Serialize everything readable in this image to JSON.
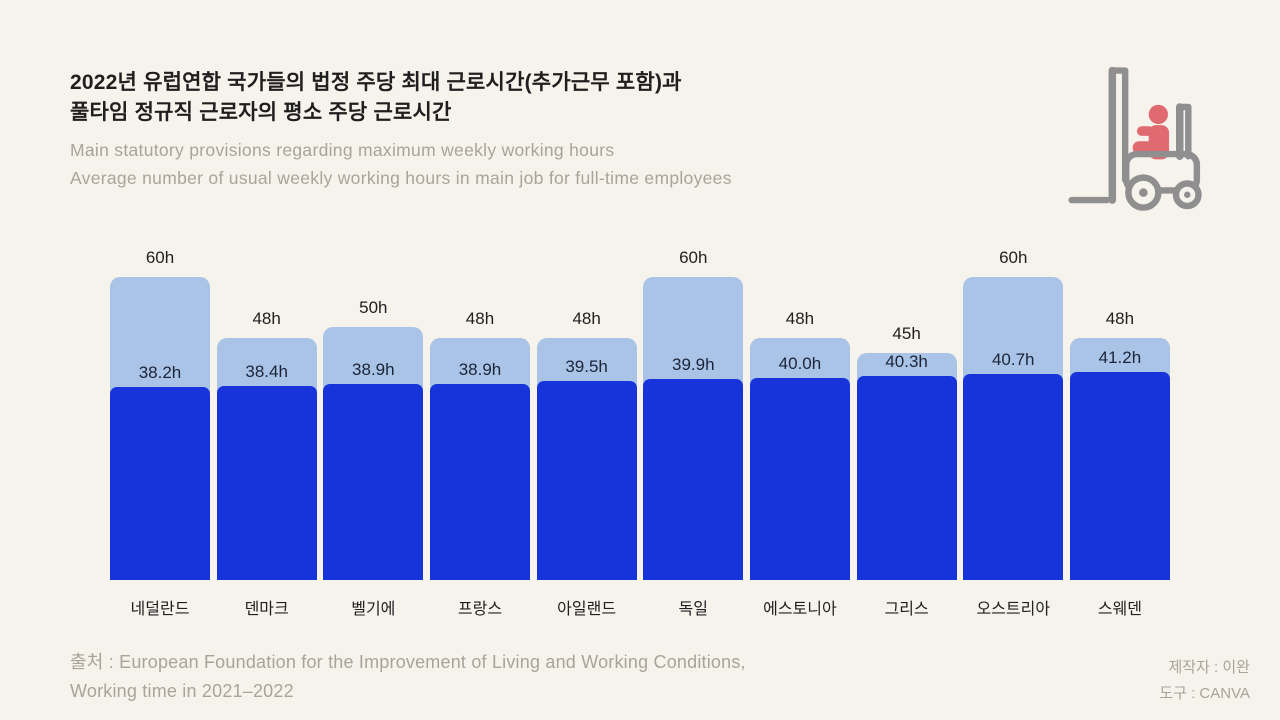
{
  "header": {
    "title_line1": "2022년 유럽연합 국가들의 법정 주당 최대 근로시간(추가근무 포함)과",
    "title_line2": "풀타임 정규직 근로자의 평소 주당 근로시간",
    "subtitle_line1": "Main statutory provisions regarding maximum weekly working hours",
    "subtitle_line2": "Average number of usual weekly working hours in main job for full-time employees"
  },
  "icon": {
    "name": "forklift-icon",
    "outline_color": "#8f8f8f",
    "driver_color": "#df6a6f"
  },
  "chart_data": {
    "type": "bar",
    "categories": [
      "네덜란드",
      "덴마크",
      "벨기에",
      "프랑스",
      "아일랜드",
      "독일",
      "에스토니아",
      "그리스",
      "오스트리아",
      "스웨덴"
    ],
    "series": [
      {
        "name": "statutory_max_weekly_hours",
        "color": "#a9c4e7",
        "values": [
          60,
          48,
          50,
          48,
          48,
          60,
          48,
          45,
          60,
          48
        ],
        "labels": [
          "60h",
          "48h",
          "50h",
          "48h",
          "48h",
          "60h",
          "48h",
          "45h",
          "60h",
          "48h"
        ]
      },
      {
        "name": "usual_weekly_hours",
        "color": "#1634d9",
        "values": [
          38.2,
          38.4,
          38.9,
          38.9,
          39.5,
          39.9,
          40.0,
          40.3,
          40.7,
          41.2
        ],
        "labels": [
          "38.2h",
          "38.4h",
          "38.9h",
          "38.9h",
          "39.5h",
          "39.9h",
          "40.0h",
          "40.3h",
          "40.7h",
          "41.2h"
        ]
      }
    ],
    "title": "2022년 유럽연합 국가들의 법정 주당 최대 근로시간(추가근무 포함)과 풀타임 정규직 근로자의 평소 주당 근로시간",
    "xlabel": "",
    "ylabel": "",
    "ylim": [
      0,
      60
    ],
    "grid": false,
    "legend_position": "none"
  },
  "footer": {
    "source_line1": "출처 : European Foundation for the Improvement of Living and Working Conditions,",
    "source_line2": "Working time in 2021–2022",
    "credit_line1": "제작자 : 이완",
    "credit_line2": "도구 : CANVA"
  },
  "colors": {
    "background": "#f6f2ec",
    "title_text": "#1f1f1f",
    "subtitle_text": "#a9a49b",
    "max_bar": "#a9c4e7",
    "usual_bar": "#1634d9",
    "value_label": "#1c2438"
  }
}
